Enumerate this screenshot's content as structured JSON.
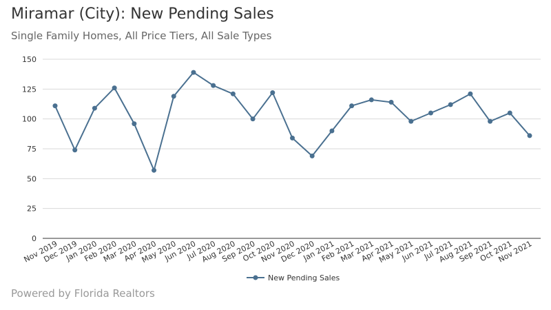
{
  "title": "Miramar (City): New Pending Sales",
  "subtitle": "Single Family Homes, All Price Tiers, All Sale Types",
  "footer": "Powered by Florida Realtors",
  "chart_data": {
    "type": "line",
    "categories": [
      "Nov 2019",
      "Dec 2019",
      "Jan 2020",
      "Feb 2020",
      "Mar 2020",
      "Apr 2020",
      "May 2020",
      "Jun 2020",
      "Jul 2020",
      "Aug 2020",
      "Sep 2020",
      "Oct 2020",
      "Nov 2020",
      "Dec 2020",
      "Jan 2021",
      "Feb 2021",
      "Mar 2021",
      "Apr 2021",
      "May 2021",
      "Jun 2021",
      "Jul 2021",
      "Aug 2021",
      "Sep 2021",
      "Oct 2021",
      "Nov 2021"
    ],
    "series": [
      {
        "name": "New Pending Sales",
        "color": "#4a7090",
        "values": [
          111,
          74,
          109,
          126,
          96,
          57,
          119,
          139,
          128,
          121,
          100,
          122,
          84,
          69,
          90,
          111,
          116,
          114,
          98,
          105,
          112,
          121,
          98,
          105,
          86
        ]
      }
    ],
    "ylim": [
      0,
      150
    ],
    "yticks": [
      0,
      25,
      50,
      75,
      100,
      125,
      150
    ],
    "grid": true,
    "legend": "bottom"
  }
}
